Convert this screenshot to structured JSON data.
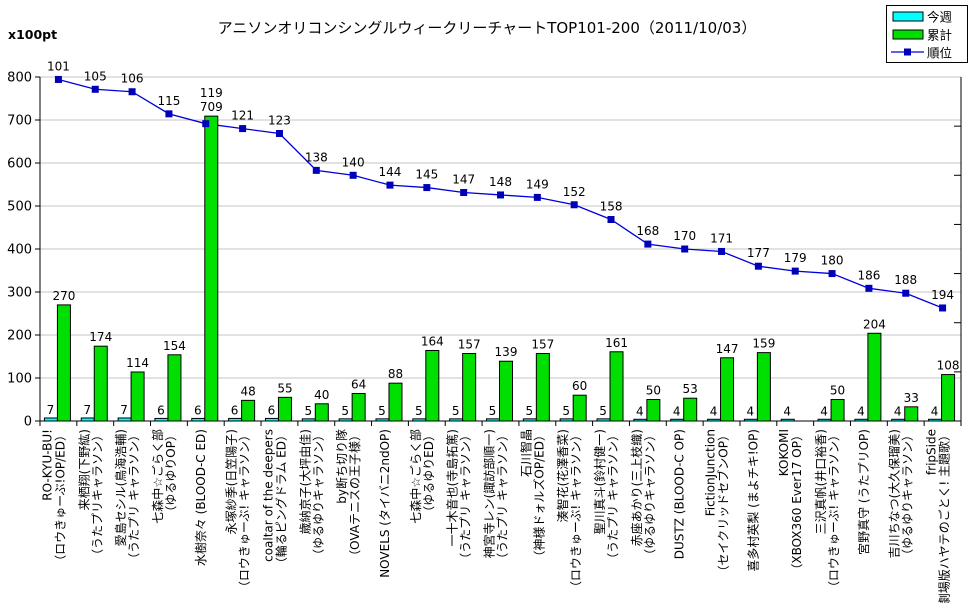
{
  "title": "アニソンオリコンシングルウィークリーチャートTOP101-200（2011/10/03）",
  "y_axis_unit_label": "x100pt",
  "legend": [
    {
      "label": "今週",
      "type": "bar",
      "color": "#00FFFF"
    },
    {
      "label": "累計",
      "type": "bar",
      "color": "#00DF00"
    },
    {
      "label": "順位",
      "type": "line",
      "line_color": "#0000DD",
      "marker_color": "#0000B8"
    }
  ],
  "chart_data": {
    "type": "bar+line",
    "title": "アニソンオリコンシングルウィークリーチャートTOP101-200（2011/10/03）",
    "ylabel": "x100pt",
    "ylim": [
      0,
      800
    ],
    "y_ticks": [
      0,
      100,
      200,
      300,
      400,
      500,
      600,
      700,
      800
    ],
    "grid": true,
    "rank_axis": {
      "min": 100,
      "max": 240,
      "inverted": true,
      "tick_step": 20,
      "labels_visible": false
    },
    "legend_position": "top-right",
    "categories": [
      {
        "name": "RO-KYU-BU!",
        "sub": "（ロウきゅーぶ!OP/ED）"
      },
      {
        "name": "来栖翔(下野紘)",
        "sub": "（うたプリキャラソン）"
      },
      {
        "name": "愛島セシル(鳥海浩輔)",
        "sub": "（うたプリ キャラソン）"
      },
      {
        "name": "七森中☆ごらく部",
        "sub": "（ゆるゆりOP）"
      },
      {
        "name": "水樹奈々 (BLOOD-C ED)",
        "sub": ""
      },
      {
        "name": "永塚紗季(日笠陽子)",
        "sub": "（ロウきゅーぶ! キャラソン）"
      },
      {
        "name": "coaltar of the deepers",
        "sub": "（輪るピングドラム ED）"
      },
      {
        "name": "歳納京子(大坪由佳)",
        "sub": "（ゆるゆりキャラソン）"
      },
      {
        "name": "by断ち切り隊",
        "sub": "（OVAテニスの王子様）"
      },
      {
        "name": "NOVELS (タイバニ2ndOP)",
        "sub": ""
      },
      {
        "name": "七森中☆ごらく部",
        "sub": "（ゆるゆりED）"
      },
      {
        "name": "一十木音也(寺島拓篤)",
        "sub": "（うたプリ キャラソン）"
      },
      {
        "name": "神宮寺レン(諏訪部順一)",
        "sub": "（うたプリ キャラソン）"
      },
      {
        "name": "石川智晶",
        "sub": "（神様ドォルズOP/ED）"
      },
      {
        "name": "湊智花(花澤香菜)",
        "sub": "（ロウきゅーぶ! キャラソン）"
      },
      {
        "name": "聖川真斗(鈴村健一)",
        "sub": "（うたプリ キャラソン）"
      },
      {
        "name": "赤座あかり(三上枝織)",
        "sub": "（ゆるゆりキャラソン）"
      },
      {
        "name": "DUSTZ (BLOOD-C OP)",
        "sub": ""
      },
      {
        "name": "FictionJunction",
        "sub": "（セイクリッドセブンOP）"
      },
      {
        "name": "喜多村英梨 (まよチキ!OP)",
        "sub": ""
      },
      {
        "name": "KOKOMI",
        "sub": "（XBOX360 Ever17 OP）"
      },
      {
        "name": "三沢真帆(井口裕香)",
        "sub": "（ロウきゅーぶ! キャラソン）"
      },
      {
        "name": "宮野真守 (うたプリOP)",
        "sub": ""
      },
      {
        "name": "吉川ちなつ(大久保瑠美)",
        "sub": "（ゆるゆりキャラソン）"
      },
      {
        "name": "fripSide",
        "sub": "（劇場版ハヤテのごとく! 主題歌）"
      }
    ],
    "series": [
      {
        "name": "今週",
        "type": "bar",
        "color": "#00FFFF",
        "values": [
          7,
          7,
          7,
          6,
          6,
          6,
          6,
          5,
          5,
          5,
          5,
          5,
          5,
          5,
          5,
          5,
          4,
          4,
          4,
          4,
          4,
          4,
          4,
          4,
          4
        ]
      },
      {
        "name": "累計",
        "type": "bar",
        "color": "#00DF00",
        "values": [
          270,
          174,
          114,
          154,
          709,
          48,
          55,
          40,
          64,
          88,
          164,
          157,
          139,
          157,
          60,
          161,
          50,
          53,
          147,
          159,
          null,
          50,
          204,
          33,
          108
        ]
      },
      {
        "name": "順位",
        "type": "line",
        "color": "#0000DD",
        "marker_color": "#0000B8",
        "values": [
          101,
          105,
          106,
          115,
          119,
          121,
          123,
          138,
          140,
          144,
          145,
          147,
          148,
          149,
          152,
          158,
          168,
          170,
          171,
          177,
          179,
          180,
          186,
          188,
          194
        ]
      }
    ]
  }
}
